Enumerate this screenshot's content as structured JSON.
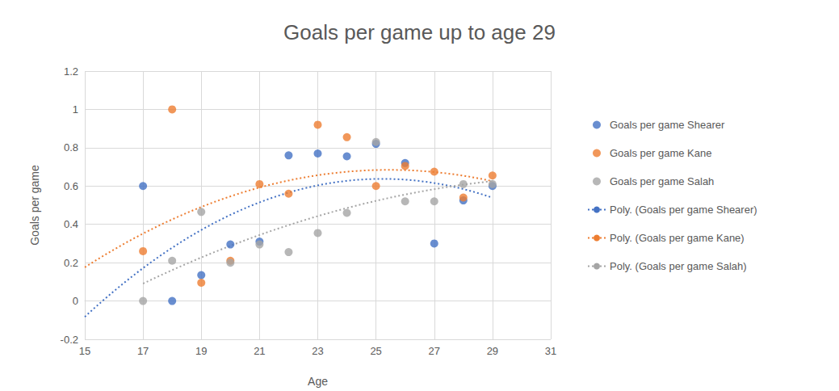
{
  "chart_data": {
    "type": "scatter",
    "title": "Goals per game up to age 29",
    "x_label": "Age",
    "y_label": "Goals per game",
    "x": [
      17,
      18,
      19,
      20,
      21,
      22,
      23,
      24,
      25,
      26,
      27,
      28,
      29
    ],
    "series": [
      {
        "name": "Goals per game Shearer",
        "color": "#4472c4",
        "marker": "circle",
        "values": [
          0.6,
          0.0,
          0.135,
          0.295,
          0.31,
          0.76,
          0.77,
          0.755,
          0.82,
          0.72,
          0.3,
          0.525,
          0.6
        ],
        "trendline": {
          "name": "Poly. (Goals per game Shearer)",
          "order": 2,
          "from": 15,
          "line_style": "dotted"
        }
      },
      {
        "name": "Goals per game Kane",
        "color": "#ed7d31",
        "marker": "circle",
        "values": [
          0.26,
          1.0,
          0.095,
          0.21,
          0.61,
          0.56,
          0.92,
          0.855,
          0.6,
          0.705,
          0.675,
          0.54,
          0.655
        ],
        "trendline": {
          "name": "Poly. (Goals per game Kane)",
          "order": 2,
          "from": 15,
          "line_style": "dotted"
        }
      },
      {
        "name": "Goals per game Salah",
        "color": "#a5a5a5",
        "marker": "circle",
        "values": [
          0.0,
          0.21,
          0.465,
          0.2,
          0.295,
          0.255,
          0.355,
          0.46,
          0.83,
          0.52,
          0.52,
          0.61,
          0.61
        ],
        "trendline": {
          "name": "Poly. (Goals per game Salah)",
          "order": 2,
          "from": 17,
          "line_style": "dotted"
        }
      }
    ],
    "xlim": [
      15,
      31
    ],
    "xticks": [
      15,
      17,
      19,
      21,
      23,
      25,
      27,
      29,
      31
    ],
    "ylim": [
      -0.2,
      1.2
    ],
    "yticks": [
      -0.2,
      0,
      0.2,
      0.4,
      0.6,
      0.8,
      1,
      1.2
    ],
    "grid": true,
    "legend": "right"
  }
}
